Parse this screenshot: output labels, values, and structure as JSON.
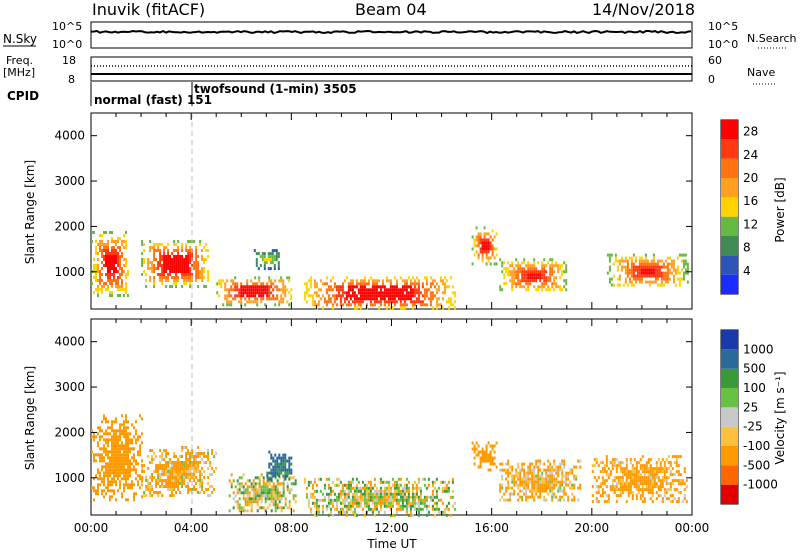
{
  "header": {
    "station": "Inuvik (fitACF)",
    "beam": "Beam 04",
    "date": "14/Nov/2018"
  },
  "panels": {
    "nsky": {
      "left_label": "N.Sky",
      "right_label": "N.Search",
      "left_ticks": [
        "10^5",
        "10^0"
      ],
      "right_ticks": [
        "10^5",
        "10^0"
      ]
    },
    "freq": {
      "left_label_top": "Freq.",
      "left_label_bottom": "[MHz]",
      "right_label": "Nave",
      "left_ticks": [
        "18",
        "8"
      ],
      "right_ticks": [
        "60",
        "0"
      ]
    },
    "cpid": {
      "label": "CPID",
      "segments": [
        {
          "text": "normal (fast) 151"
        },
        {
          "text": "twofsound (1-min) 3505"
        }
      ]
    }
  },
  "colors": {
    "power": [
      "#1a2cff",
      "#2c55b8",
      "#3f8a55",
      "#67b944",
      "#ffd200",
      "#ffa020",
      "#ff7410",
      "#ff3a10",
      "#ff0000"
    ],
    "velocity": [
      "#e00000",
      "#ff6600",
      "#ff9900",
      "#ffc040",
      "#c8c8c8",
      "#67c244",
      "#3a9a3a",
      "#2a6a9a",
      "#1a3aaa"
    ]
  },
  "chart_data": [
    {
      "type": "heatmap",
      "title": "",
      "xlabel": "Time UT",
      "ylabel": "Slant Range [km]",
      "xlim": [
        "00:00",
        "24:00"
      ],
      "ylim": [
        180,
        4500
      ],
      "x_ticks": [
        "00:00",
        "04:00",
        "08:00",
        "12:00",
        "16:00",
        "20:00",
        "00:00"
      ],
      "y_ticks": [
        1000,
        2000,
        3000,
        4000
      ],
      "colorbar": {
        "label": "Power [dB]",
        "ticks": [
          4,
          8,
          12,
          16,
          20,
          24,
          28
        ],
        "range": [
          0,
          30
        ]
      },
      "regions": [
        {
          "t_start": 0.0,
          "t_end": 1.5,
          "r_min": 500,
          "r_max": 1900,
          "peak_db": 26
        },
        {
          "t_start": 2.0,
          "t_end": 4.7,
          "r_min": 700,
          "r_max": 1700,
          "peak_db": 28
        },
        {
          "t_start": 5.0,
          "t_end": 8.0,
          "r_min": 300,
          "r_max": 900,
          "peak_db": 28
        },
        {
          "t_start": 6.5,
          "t_end": 7.5,
          "r_min": 1100,
          "r_max": 1500,
          "peak_db": 12
        },
        {
          "t_start": 8.5,
          "t_end": 14.5,
          "r_min": 200,
          "r_max": 900,
          "peak_db": 30
        },
        {
          "t_start": 15.2,
          "t_end": 16.2,
          "r_min": 1200,
          "r_max": 2000,
          "peak_db": 26
        },
        {
          "t_start": 16.3,
          "t_end": 19.0,
          "r_min": 600,
          "r_max": 1300,
          "peak_db": 24
        },
        {
          "t_start": 20.6,
          "t_end": 23.8,
          "r_min": 700,
          "r_max": 1400,
          "peak_db": 24
        }
      ]
    },
    {
      "type": "heatmap",
      "title": "",
      "xlabel": "Time UT",
      "ylabel": "Slant Range [km]",
      "xlim": [
        "00:00",
        "24:00"
      ],
      "ylim": [
        180,
        4500
      ],
      "x_ticks": [
        "00:00",
        "04:00",
        "08:00",
        "12:00",
        "16:00",
        "20:00",
        "00:00"
      ],
      "y_ticks": [
        1000,
        2000,
        3000,
        4000
      ],
      "colorbar": {
        "label": "Velocity [m s⁻¹]",
        "ticks": [
          1000,
          500,
          100,
          25,
          -25,
          -100,
          -500,
          -1000
        ]
      },
      "regions": [
        {
          "t_start": 0.0,
          "t_end": 2.0,
          "r_min": 500,
          "r_max": 2400,
          "velocity": -300
        },
        {
          "t_start": 2.0,
          "t_end": 5.0,
          "r_min": 600,
          "r_max": 1700,
          "velocity": -150
        },
        {
          "t_start": 5.5,
          "t_end": 8.2,
          "r_min": 300,
          "r_max": 1100,
          "velocity": 0
        },
        {
          "t_start": 7.0,
          "t_end": 8.0,
          "r_min": 1000,
          "r_max": 1600,
          "velocity": 600
        },
        {
          "t_start": 8.5,
          "t_end": 14.5,
          "r_min": 200,
          "r_max": 1000,
          "velocity": 0
        },
        {
          "t_start": 15.2,
          "t_end": 16.2,
          "r_min": 1200,
          "r_max": 1800,
          "velocity": -300
        },
        {
          "t_start": 16.3,
          "t_end": 19.5,
          "r_min": 500,
          "r_max": 1400,
          "velocity": -150
        },
        {
          "t_start": 20.0,
          "t_end": 23.8,
          "r_min": 500,
          "r_max": 1500,
          "velocity": -200
        }
      ]
    }
  ]
}
